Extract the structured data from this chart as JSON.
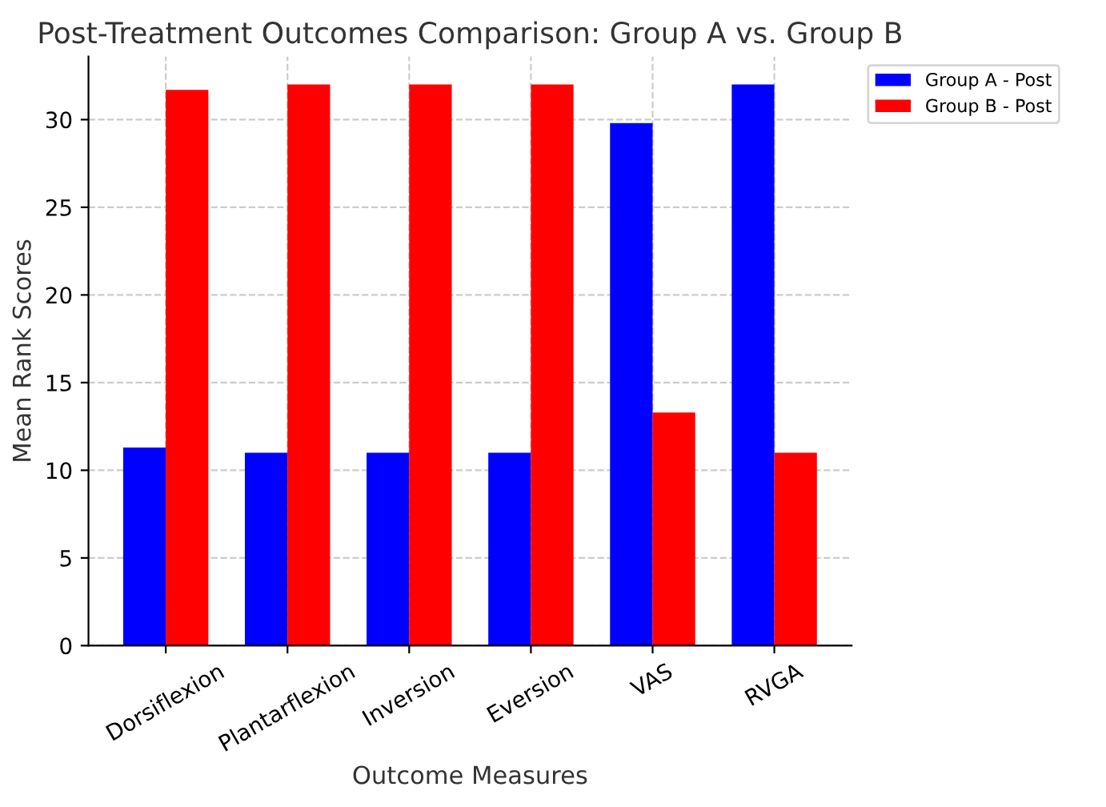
{
  "chart_data": {
    "type": "bar",
    "title": "Post-Treatment Outcomes Comparison: Group A vs. Group B",
    "xlabel": "Outcome Measures",
    "ylabel": "Mean Rank Scores",
    "categories": [
      "Dorsiflexion",
      "Plantarflexion",
      "Inversion",
      "Eversion",
      "VAS",
      "RVGA"
    ],
    "series": [
      {
        "name": "Group A - Post",
        "color": "#0000ff",
        "values": [
          11.3,
          11.0,
          11.0,
          11.0,
          29.8,
          32.0
        ]
      },
      {
        "name": "Group B - Post",
        "color": "#ff0000",
        "values": [
          31.7,
          32.0,
          32.0,
          32.0,
          13.3,
          11.0
        ]
      }
    ],
    "ylim": [
      0,
      33.6
    ],
    "yticks": [
      0,
      5,
      10,
      15,
      20,
      25,
      30
    ],
    "grid": true,
    "legend": "right"
  }
}
